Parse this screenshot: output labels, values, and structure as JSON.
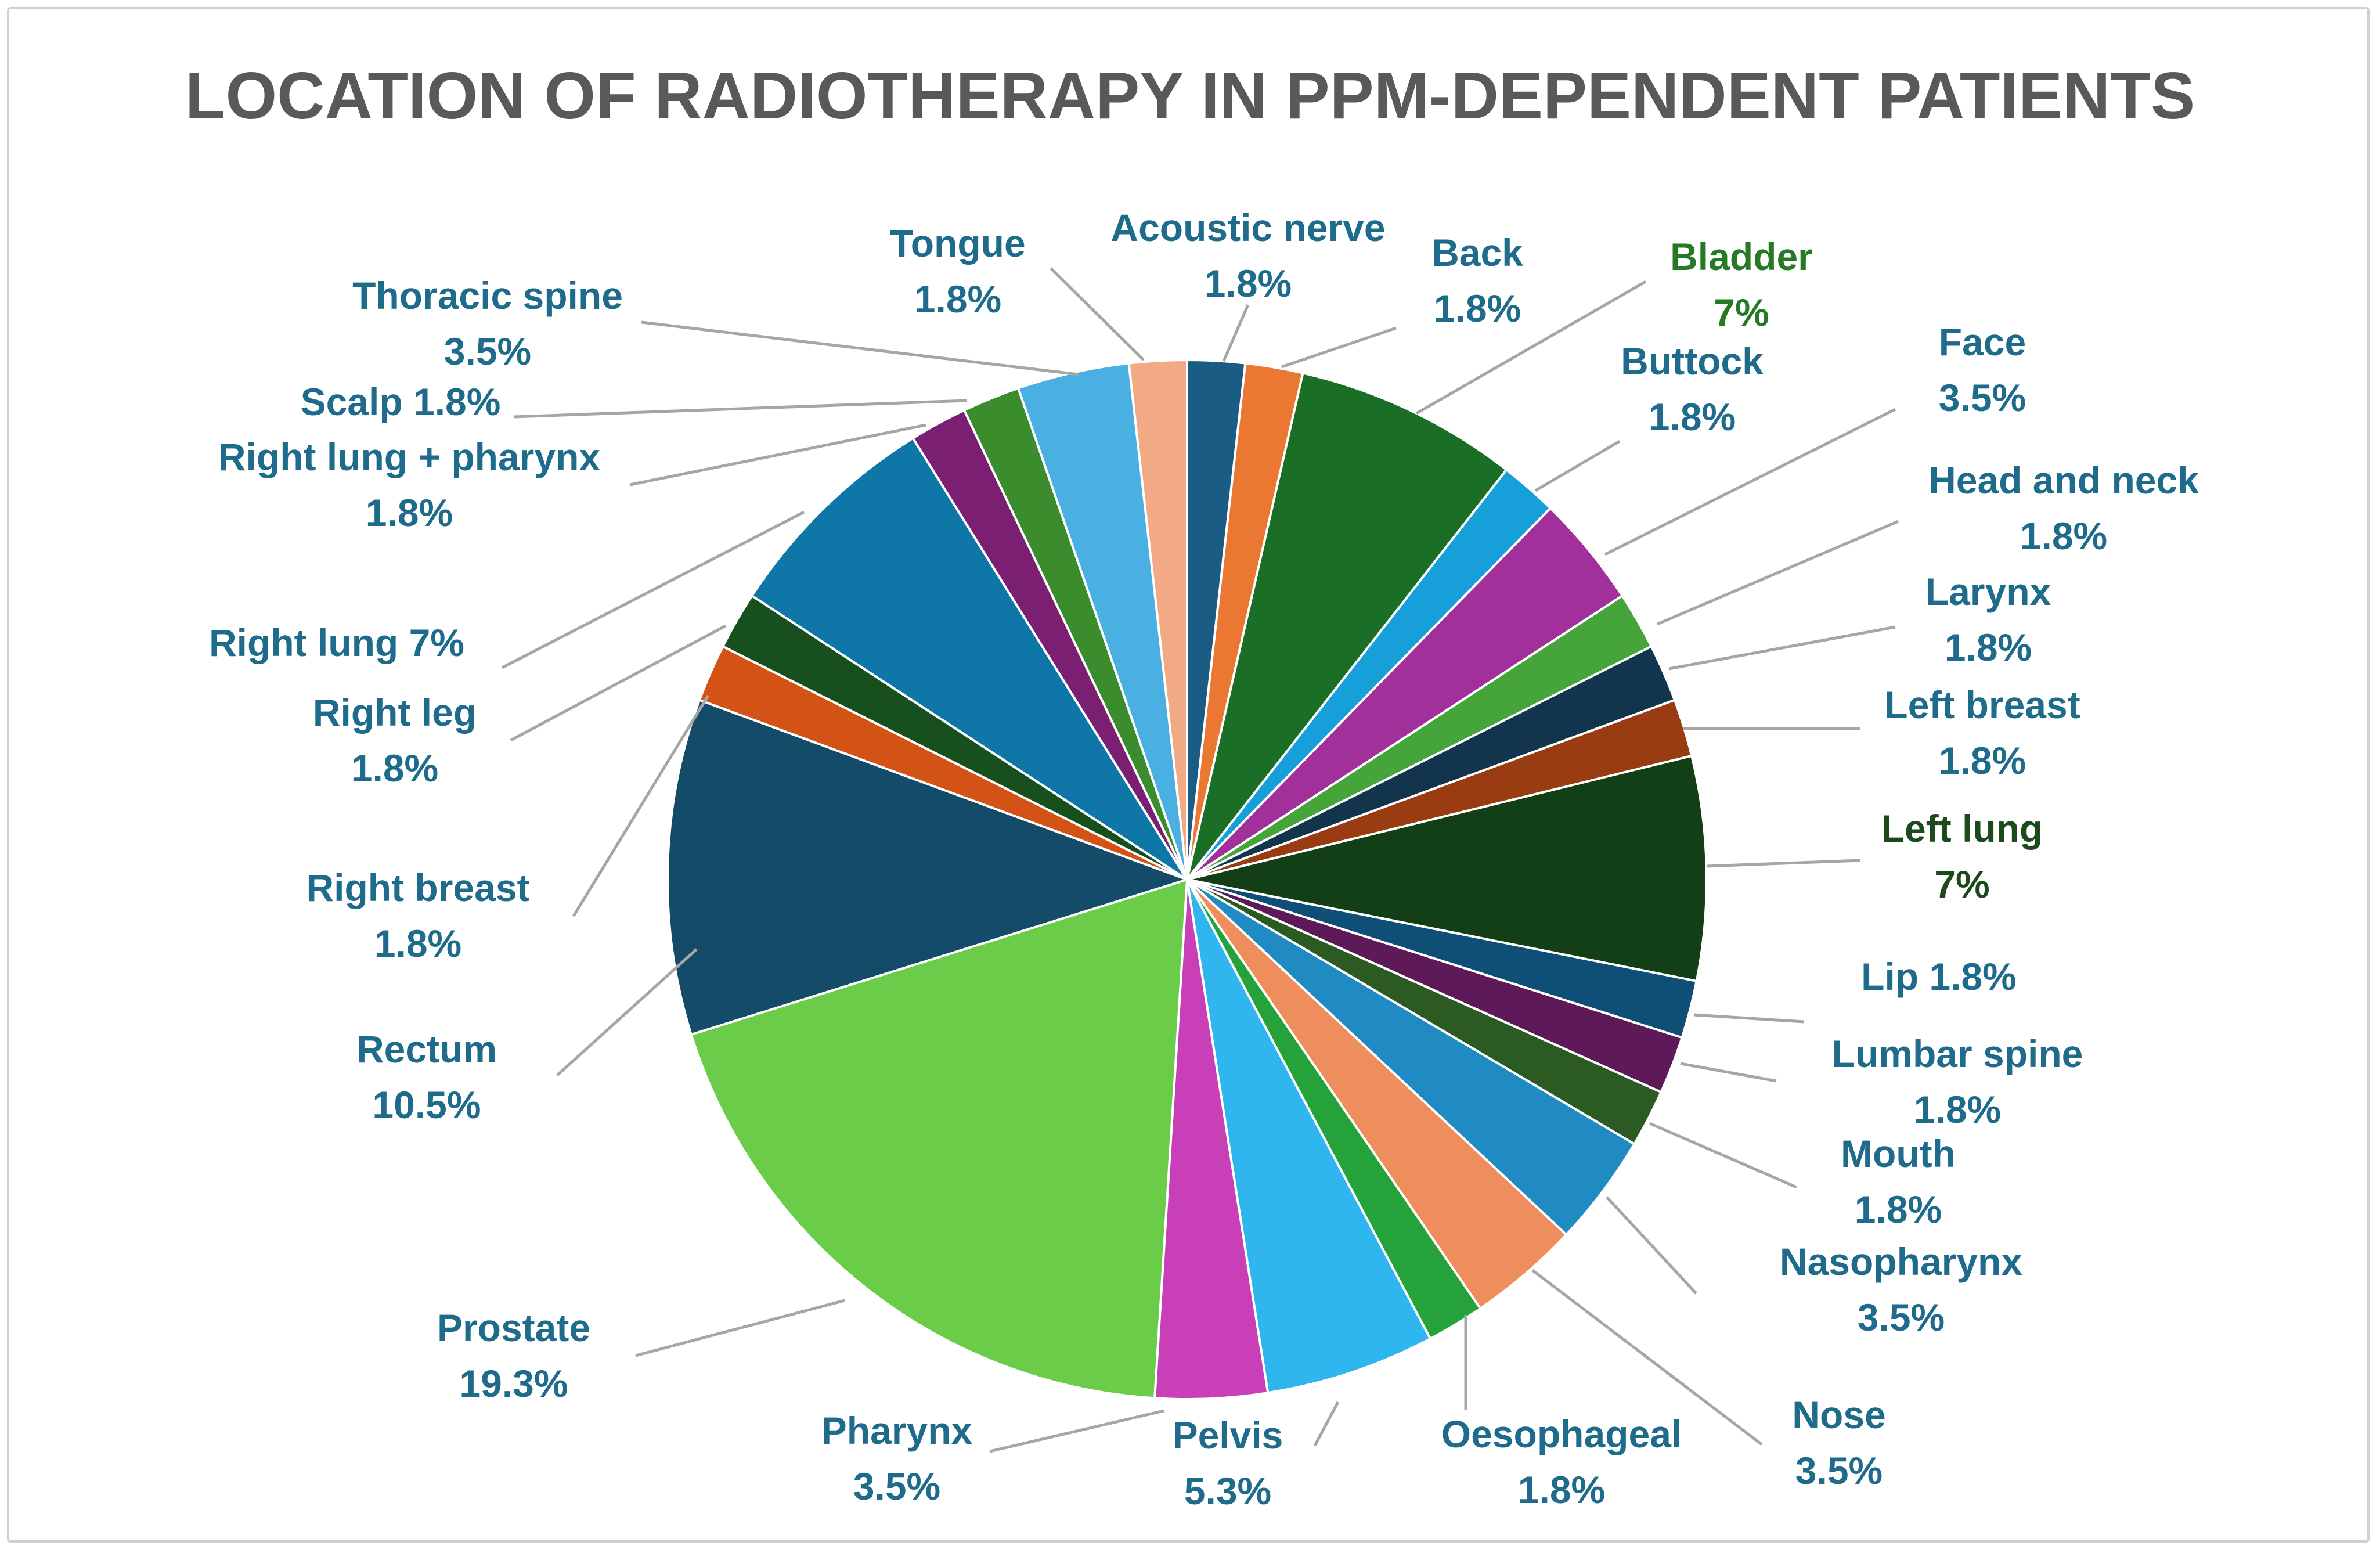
{
  "chart_data": {
    "type": "pie",
    "title": "LOCATION OF RADIOTHERAPY IN PPM-DEPENDENT PATIENTS",
    "slices": [
      {
        "label": "Acoustic nerve",
        "value": 1.8,
        "value_label": "1.8%",
        "color": "#1b5c84",
        "label_color": "#1f6b8c",
        "label_lines": [
          "Acoustic nerve",
          "1.8%"
        ]
      },
      {
        "label": "Back",
        "value": 1.8,
        "value_label": "1.8%",
        "color": "#ea7833",
        "label_color": "#1f6b8c",
        "label_lines": [
          "Back",
          "1.8%"
        ]
      },
      {
        "label": "Bladder",
        "value": 7,
        "value_label": "7%",
        "color": "#1b6e26",
        "label_color": "#267a26",
        "label_lines": [
          "Bladder",
          "7%"
        ]
      },
      {
        "label": "Buttock",
        "value": 1.8,
        "value_label": "1.8%",
        "color": "#169fd9",
        "label_color": "#1f6b8c",
        "label_lines": [
          "Buttock",
          "1.8%"
        ]
      },
      {
        "label": "Face",
        "value": 3.5,
        "value_label": "3.5%",
        "color": "#a2309a",
        "label_color": "#1f6b8c",
        "label_lines": [
          "Face",
          "3.5%"
        ]
      },
      {
        "label": "Head and neck",
        "value": 1.8,
        "value_label": "1.8%",
        "color": "#45a43a",
        "label_color": "#1f6b8c",
        "label_lines": [
          "Head and neck",
          "1.8%"
        ]
      },
      {
        "label": "Larynx",
        "value": 1.8,
        "value_label": "1.8%",
        "color": "#12344d",
        "label_color": "#1f6b8c",
        "label_lines": [
          "Larynx",
          "1.8%"
        ]
      },
      {
        "label": "Left breast",
        "value": 1.8,
        "value_label": "1.8%",
        "color": "#9a3c12",
        "label_color": "#1f6b8c",
        "label_lines": [
          "Left breast",
          "1.8%"
        ]
      },
      {
        "label": "Left lung",
        "value": 7,
        "value_label": "7%",
        "color": "#123f16",
        "label_color": "#1d4a1d",
        "label_lines": [
          "Left lung",
          "7%"
        ]
      },
      {
        "label": "Lip",
        "value": 1.8,
        "value_label": "1.8%",
        "color": "#0f4e76",
        "label_color": "#1f6b8c",
        "label_lines": [
          "Lip 1.8%"
        ]
      },
      {
        "label": "Lumbar spine",
        "value": 1.8,
        "value_label": "1.8%",
        "color": "#5e1a58",
        "label_color": "#1f6b8c",
        "label_lines": [
          "Lumbar spine",
          "1.8%"
        ]
      },
      {
        "label": "Mouth",
        "value": 1.8,
        "value_label": "1.8%",
        "color": "#2b5a22",
        "label_color": "#1f6b8c",
        "label_lines": [
          "Mouth",
          "1.8%"
        ]
      },
      {
        "label": "Nasopharynx",
        "value": 3.5,
        "value_label": "3.5%",
        "color": "#1f8bc2",
        "label_color": "#1f6b8c",
        "label_lines": [
          "Nasopharynx",
          "3.5%"
        ]
      },
      {
        "label": "Nose",
        "value": 3.5,
        "value_label": "3.5%",
        "color": "#ee8e5c",
        "label_color": "#1f6b8c",
        "label_lines": [
          "Nose",
          "3.5%"
        ]
      },
      {
        "label": "Oesophageal",
        "value": 1.8,
        "value_label": "1.8%",
        "color": "#25a33a",
        "label_color": "#1f6b8c",
        "label_lines": [
          "Oesophageal",
          "1.8%"
        ]
      },
      {
        "label": "Pelvis",
        "value": 5.3,
        "value_label": "5.3%",
        "color": "#2fb6ee",
        "label_color": "#1f6b8c",
        "label_lines": [
          "Pelvis",
          "5.3%"
        ]
      },
      {
        "label": "Pharynx",
        "value": 3.5,
        "value_label": "3.5%",
        "color": "#c83fb8",
        "label_color": "#1f6b8c",
        "label_lines": [
          "Pharynx",
          "3.5%"
        ]
      },
      {
        "label": "Prostate",
        "value": 19.3,
        "value_label": "19.3%",
        "color": "#6acc48",
        "label_color": "#1f6b8c",
        "label_lines": [
          "Prostate",
          "19.3%"
        ]
      },
      {
        "label": "Rectum",
        "value": 10.5,
        "value_label": "10.5%",
        "color": "#134b68",
        "label_color": "#1f6b8c",
        "label_lines": [
          "Rectum",
          "10.5%"
        ]
      },
      {
        "label": "Right breast",
        "value": 1.8,
        "value_label": "1.8%",
        "color": "#d35216",
        "label_color": "#1f6b8c",
        "label_lines": [
          "Right breast",
          "1.8%"
        ]
      },
      {
        "label": "Right leg",
        "value": 1.8,
        "value_label": "1.8%",
        "color": "#17501e",
        "label_color": "#1f6b8c",
        "label_lines": [
          "Right leg",
          "1.8%"
        ]
      },
      {
        "label": "Right lung",
        "value": 7,
        "value_label": "7%",
        "color": "#0f77a8",
        "label_color": "#1f6b8c",
        "label_lines": [
          "Right lung 7%"
        ]
      },
      {
        "label": "Right lung + pharynx",
        "value": 1.8,
        "value_label": "1.8%",
        "color": "#7a1f72",
        "label_color": "#1f6b8c",
        "label_lines": [
          "Right lung + pharynx",
          "1.8%"
        ]
      },
      {
        "label": "Scalp",
        "value": 1.8,
        "value_label": "1.8%",
        "color": "#3a8c2c",
        "label_color": "#1f6b8c",
        "label_lines": [
          "Scalp 1.8%"
        ]
      },
      {
        "label": "Thoracic spine",
        "value": 3.5,
        "value_label": "3.5%",
        "color": "#4ab0e2",
        "label_color": "#1f6b8c",
        "label_lines": [
          "Thoracic spine",
          "3.5%"
        ]
      },
      {
        "label": "Tongue",
        "value": 1.8,
        "value_label": "1.8%",
        "color": "#f2aa86",
        "label_color": "#1f6b8c",
        "label_lines": [
          "Tongue",
          "1.8%"
        ]
      }
    ],
    "leader_line_color": "#a6a6a6"
  }
}
